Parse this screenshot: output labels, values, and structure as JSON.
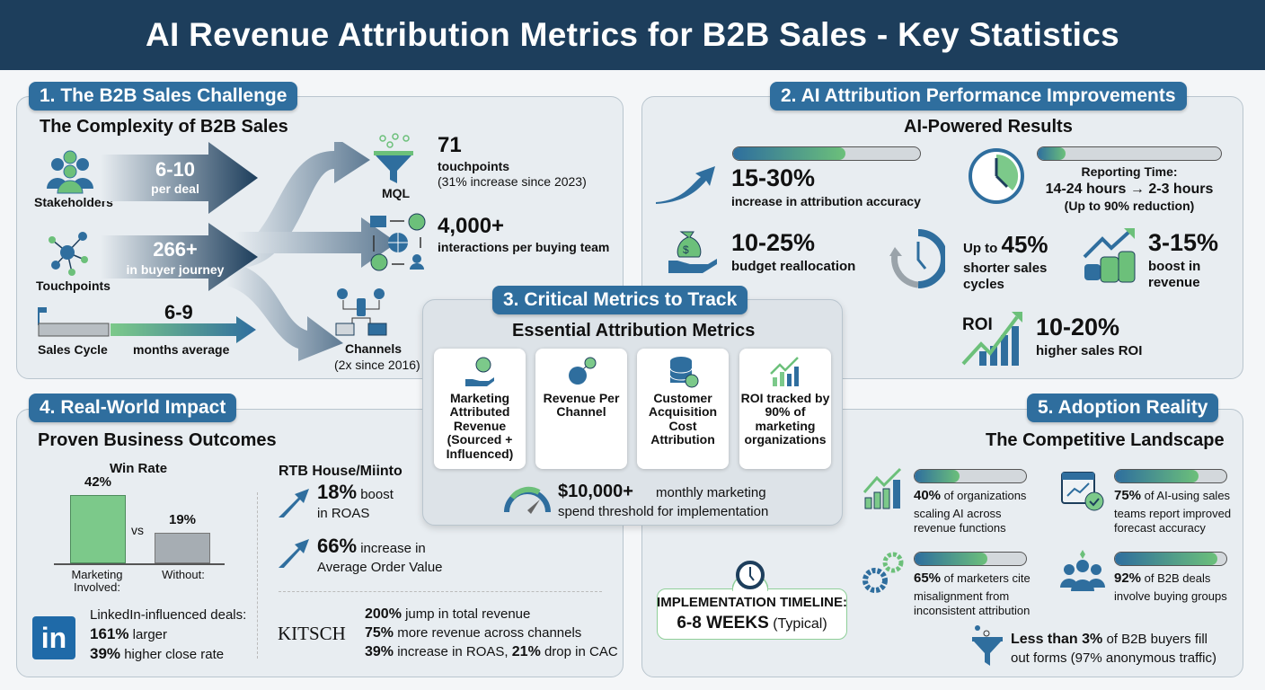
{
  "title": "AI Revenue Attribution Metrics for B2B Sales - Key Statistics",
  "colors": {
    "header": "#1d3e5c",
    "accent": "#2f6e9e",
    "green": "#6cc07a",
    "panel": "#e8edf1"
  },
  "s1": {
    "label": "1. The B2B Sales Challenge",
    "subtitle": "The Complexity of B2B Sales",
    "stakeholders": {
      "label": "Stakeholders",
      "value": "6-10",
      "unit": "per deal"
    },
    "touchpoints": {
      "label": "Touchpoints",
      "value": "266+",
      "unit": "in buyer journey"
    },
    "cycle": {
      "label": "Sales Cycle",
      "value": "6-9",
      "unit": "months average"
    },
    "mql": {
      "label": "MQL",
      "value": "71",
      "l1": "touchpoints",
      "l2": "(31% increase since 2023)"
    },
    "interactions": {
      "value": "4,000+",
      "text": "interactions per buying team"
    },
    "channels": {
      "label": "Channels",
      "note": "(2x since 2016)"
    }
  },
  "s2": {
    "label": "2. AI Attribution Performance Improvements",
    "subtitle": "AI-Powered Results",
    "accuracy": {
      "value": "15-30%",
      "text": "increase in attribution accuracy",
      "progress": 0.6
    },
    "reporting": {
      "l1": "Reporting Time:",
      "l2": "14-24 hours → 2-3 hours",
      "l3": "(Up to 90% reduction)",
      "progress": 0.15
    },
    "budget": {
      "value": "10-25%",
      "text": "budget reallocation"
    },
    "cycles": {
      "prefix": "Up to",
      "value": "45%",
      "l1": "shorter sales",
      "l2": "cycles"
    },
    "revenue": {
      "value": "3-15%",
      "l1": "boost in",
      "l2": "revenue"
    },
    "roi": {
      "icon_label": "ROI",
      "value": "10-20%",
      "text": "higher sales ROI"
    }
  },
  "s3": {
    "label": "3. Critical Metrics to Track",
    "subtitle": "Essential Attribution Metrics",
    "cards": [
      "Marketing Attributed Revenue (Sourced + Influenced)",
      "Revenue Per Channel",
      "Customer Acquisition Cost Attribution",
      "ROI tracked by 90% of marketing organizations"
    ],
    "threshold": {
      "value": "$10,000+",
      "l1": "monthly marketing",
      "l2": "spend threshold for implementation"
    }
  },
  "s4": {
    "label": "4. Real-World Impact",
    "subtitle": "Proven Business Outcomes",
    "winrate": {
      "title": "Win Rate",
      "vs": "vs",
      "bars": [
        {
          "label": "Marketing Involved:",
          "value": 42,
          "text": "42%"
        },
        {
          "label": "Without:",
          "value": 19,
          "text": "19%"
        }
      ]
    },
    "linkedin": {
      "logo": "in",
      "l1": "LinkedIn-influenced deals:",
      "v2": "161%",
      "t2": "larger",
      "v3": "39%",
      "t3": "higher close rate"
    },
    "rtb": {
      "title": "RTB House/Miinto",
      "v1": "18%",
      "t1": "boost",
      "t1b": "in ROAS",
      "v2": "66%",
      "t2": "increase in",
      "t2b": "Average Order Value"
    },
    "kitsch": {
      "logo": "KITSCH",
      "v1": "200%",
      "t1": "jump in total revenue",
      "v2": "75%",
      "t2": "more revenue across channels",
      "v3": "39%",
      "t3": "increase in ROAS,",
      "v4": "21%",
      "t4": "drop in CAC"
    }
  },
  "s5": {
    "label": "5. Adoption Reality",
    "subtitle": "The Competitive Landscape",
    "items": [
      {
        "value": "40%",
        "text": "of organizations",
        "l2": "scaling AI across",
        "l3": "revenue functions",
        "progress": 0.4
      },
      {
        "value": "75%",
        "text": "of AI-using sales",
        "l2": "teams report improved",
        "l3": "forecast accuracy",
        "progress": 0.75
      },
      {
        "value": "65%",
        "text": "of marketers cite",
        "l2": "misalignment from",
        "l3": "inconsistent attribution",
        "progress": 0.65
      },
      {
        "value": "92%",
        "text": "of B2B deals",
        "l2": "involve buying groups",
        "l3": "",
        "progress": 0.92
      }
    ],
    "forms": {
      "value": "Less than 3%",
      "text": "of B2B buyers fill",
      "l2": "out forms (97% anonymous traffic)"
    },
    "timeline": {
      "l1": "IMPLEMENTATION TIMELINE:",
      "value": "6-8 WEEKS",
      "note": "(Typical)"
    }
  }
}
